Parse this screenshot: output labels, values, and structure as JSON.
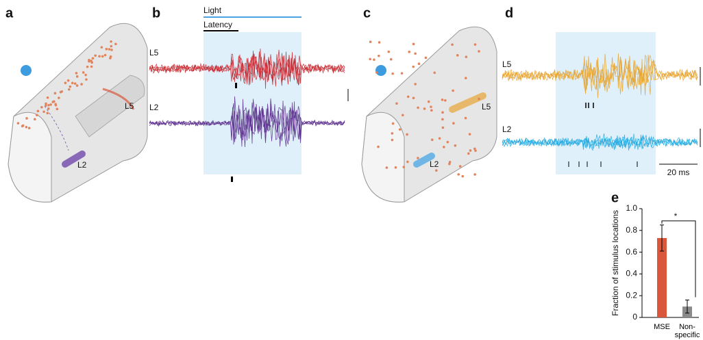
{
  "panels": {
    "a": {
      "label": "a",
      "L5": "L5",
      "L2": "L2"
    },
    "b": {
      "label": "b",
      "light": "Light",
      "latency": "Latency",
      "L5": "L5",
      "L2": "L2"
    },
    "c": {
      "label": "c",
      "L5": "L5",
      "L2": "L2"
    },
    "d": {
      "label": "d",
      "L5": "L5",
      "L2": "L2",
      "scale": "20 ms"
    },
    "e": {
      "label": "e"
    }
  },
  "chart_data": {
    "type": "bar",
    "ylabel": "Fraction of stimulus locations",
    "categories": [
      "MSE",
      "Non-\nspecific"
    ],
    "values": [
      0.73,
      0.1
    ],
    "errors": [
      0.12,
      0.06
    ],
    "colors": [
      "#d9573a",
      "#8a8a8a"
    ],
    "annotation": "*",
    "ylim": [
      0,
      1
    ],
    "yticks": [
      0,
      0.2,
      0.4,
      0.6,
      0.8,
      {
        "value": 1,
        "label": "1.0"
      }
    ]
  }
}
